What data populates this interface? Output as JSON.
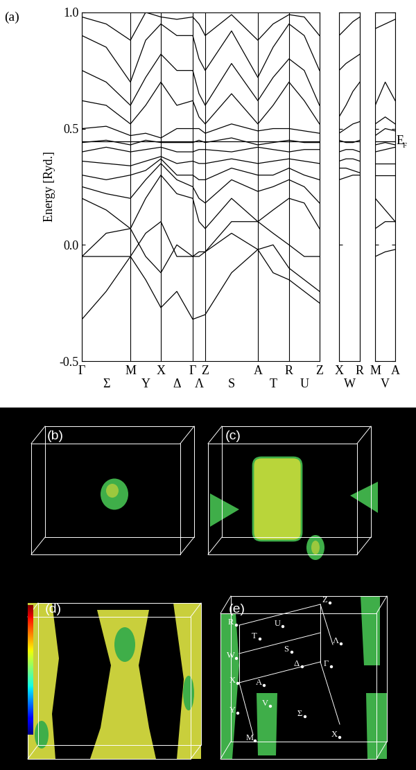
{
  "panel_label": "(a)",
  "fermi_level": {
    "value": 0.445,
    "label": "E",
    "subscript": "F"
  },
  "chart_data": [
    {
      "type": "line",
      "color": "black",
      "grid": true,
      "ylabel": "Energy [Ryd.]",
      "xlim": [
        0,
        343
      ],
      "ylim": [
        -0.5,
        1.0
      ],
      "yticks": [
        -0.5,
        0.0,
        0.5,
        1.0
      ],
      "xticks": [
        {
          "value": 0,
          "label": "Γ"
        },
        {
          "value": 70,
          "label": "M"
        },
        {
          "value": 114,
          "label": "X"
        },
        {
          "value": 160,
          "label": "Γ"
        },
        {
          "value": 178,
          "label": "Z"
        },
        {
          "value": 254,
          "label": "A"
        },
        {
          "value": 299,
          "label": "R"
        },
        {
          "value": 343,
          "label": "Z"
        }
      ],
      "xsublabels": [
        {
          "value": 35,
          "label": "Σ"
        },
        {
          "value": 92,
          "label": "Y"
        },
        {
          "value": 137,
          "label": "Δ"
        },
        {
          "value": 169,
          "label": "Λ"
        },
        {
          "value": 216,
          "label": "S"
        },
        {
          "value": 276,
          "label": "T"
        },
        {
          "value": 321,
          "label": "U"
        }
      ],
      "x": [
        0,
        35,
        70,
        92,
        114,
        137,
        160,
        169,
        178,
        216,
        254,
        276,
        299,
        321,
        343
      ],
      "series": [
        {
          "values": [
            -0.32,
            -0.2,
            -0.05,
            -0.15,
            -0.27,
            -0.2,
            -0.32,
            -0.31,
            -0.3,
            -0.12,
            -0.02,
            -0.12,
            -0.15,
            -0.2,
            -0.25
          ]
        },
        {
          "values": [
            -0.05,
            -0.05,
            -0.05,
            0.05,
            0.1,
            -0.05,
            -0.05,
            -0.05,
            -0.03,
            0.05,
            -0.02,
            0.0,
            -0.1,
            -0.15,
            -0.2
          ]
        },
        {
          "values": [
            -0.05,
            0.05,
            0.07,
            -0.05,
            -0.12,
            0.0,
            -0.05,
            -0.03,
            -0.03,
            0.1,
            0.1,
            0.05,
            0.0,
            -0.05,
            -0.05
          ]
        },
        {
          "values": [
            0.2,
            0.15,
            0.07,
            0.2,
            0.3,
            0.22,
            0.2,
            0.1,
            0.07,
            0.2,
            0.1,
            0.15,
            0.2,
            0.18,
            0.07
          ]
        },
        {
          "values": [
            0.25,
            0.22,
            0.2,
            0.28,
            0.35,
            0.28,
            0.25,
            0.2,
            0.18,
            0.28,
            0.23,
            0.25,
            0.28,
            0.25,
            0.18
          ]
        },
        {
          "values": [
            0.3,
            0.28,
            0.3,
            0.32,
            0.37,
            0.3,
            0.3,
            0.28,
            0.28,
            0.33,
            0.3,
            0.3,
            0.33,
            0.3,
            0.28
          ]
        },
        {
          "values": [
            0.36,
            0.35,
            0.34,
            0.36,
            0.38,
            0.35,
            0.36,
            0.35,
            0.35,
            0.37,
            0.35,
            0.36,
            0.37,
            0.36,
            0.35
          ]
        },
        {
          "values": [
            0.4,
            0.42,
            0.4,
            0.41,
            0.42,
            0.4,
            0.4,
            0.41,
            0.41,
            0.4,
            0.42,
            0.41,
            0.4,
            0.41,
            0.41
          ]
        },
        {
          "values": [
            0.44,
            0.45,
            0.43,
            0.45,
            0.44,
            0.44,
            0.44,
            0.45,
            0.44,
            0.46,
            0.43,
            0.44,
            0.45,
            0.44,
            0.44
          ]
        },
        {
          "values": [
            0.5,
            0.51,
            0.47,
            0.48,
            0.46,
            0.5,
            0.5,
            0.5,
            0.48,
            0.52,
            0.49,
            0.5,
            0.5,
            0.49,
            0.48
          ]
        },
        {
          "values": [
            0.62,
            0.6,
            0.52,
            0.6,
            0.7,
            0.6,
            0.62,
            0.55,
            0.52,
            0.65,
            0.52,
            0.6,
            0.7,
            0.62,
            0.52
          ]
        },
        {
          "values": [
            0.75,
            0.7,
            0.6,
            0.72,
            0.82,
            0.75,
            0.75,
            0.65,
            0.6,
            0.78,
            0.62,
            0.72,
            0.8,
            0.75,
            0.6
          ]
        },
        {
          "values": [
            0.9,
            0.85,
            0.7,
            0.88,
            0.95,
            0.9,
            0.9,
            0.8,
            0.75,
            0.92,
            0.72,
            0.85,
            0.95,
            0.9,
            0.75
          ]
        },
        {
          "values": [
            0.98,
            0.95,
            0.88,
            1.0,
            0.98,
            0.97,
            0.98,
            0.95,
            0.9,
            0.99,
            0.88,
            0.95,
            0.99,
            0.98,
            0.9
          ]
        }
      ]
    },
    {
      "type": "line",
      "color": "black",
      "grid": true,
      "tick_labels": "x",
      "xlim": [
        0,
        30
      ],
      "ylim": [
        -0.5,
        1.0
      ],
      "yticks": [
        -0.5,
        0.0,
        0.5,
        1.0
      ],
      "xticks": [
        {
          "value": 0,
          "label": "X"
        },
        {
          "value": 30,
          "label": "R"
        }
      ],
      "xsublabels": [
        {
          "value": 15,
          "label": "W"
        }
      ],
      "x": [
        0,
        10,
        20,
        30
      ],
      "series": [
        {
          "values": [
            0.28,
            0.29,
            0.3,
            0.3
          ]
        },
        {
          "values": [
            0.33,
            0.33,
            0.32,
            0.31
          ]
        },
        {
          "values": [
            0.36,
            0.37,
            0.37,
            0.36
          ]
        },
        {
          "values": [
            0.4,
            0.41,
            0.41,
            0.4
          ]
        },
        {
          "values": [
            0.45,
            0.44,
            0.44,
            0.45
          ]
        },
        {
          "values": [
            0.48,
            0.5,
            0.52,
            0.53
          ]
        },
        {
          "values": [
            0.55,
            0.6,
            0.66,
            0.7
          ]
        },
        {
          "values": [
            0.75,
            0.78,
            0.8,
            0.82
          ]
        },
        {
          "values": [
            0.9,
            0.93,
            0.96,
            0.98
          ]
        }
      ]
    },
    {
      "type": "line",
      "color": "black",
      "grid": true,
      "tick_labels": "x",
      "xlim": [
        0,
        28
      ],
      "ylim": [
        -0.5,
        1.0
      ],
      "yticks": [
        -0.5,
        0.0,
        0.5,
        1.0
      ],
      "xticks": [
        {
          "value": 0,
          "label": "M"
        },
        {
          "value": 28,
          "label": "A"
        }
      ],
      "xsublabels": [
        {
          "value": 14,
          "label": "V"
        }
      ],
      "x": [
        0,
        14,
        28
      ],
      "series": [
        {
          "values": [
            -0.05,
            -0.03,
            -0.02
          ]
        },
        {
          "values": [
            0.07,
            0.1,
            0.1
          ]
        },
        {
          "values": [
            0.2,
            0.15,
            0.1
          ]
        },
        {
          "values": [
            0.3,
            0.3,
            0.3
          ]
        },
        {
          "values": [
            0.35,
            0.35,
            0.35
          ]
        },
        {
          "values": [
            0.4,
            0.41,
            0.42
          ]
        },
        {
          "values": [
            0.43,
            0.44,
            0.43
          ]
        },
        {
          "values": [
            0.47,
            0.5,
            0.49
          ]
        },
        {
          "values": [
            0.52,
            0.55,
            0.52
          ]
        },
        {
          "values": [
            0.6,
            0.7,
            0.62
          ]
        },
        {
          "values": [
            0.93,
            0.95,
            0.97
          ]
        }
      ]
    }
  ],
  "fermi_surfaces": {
    "panel_labels": [
      "(b)",
      "(c)",
      "(d)",
      "(e)"
    ],
    "bz_points": [
      "R",
      "T",
      "U",
      "Z",
      "S",
      "Λ",
      "W",
      "X",
      "A",
      "Δ",
      "Γ",
      "V",
      "Y",
      "Σ",
      "M",
      "X"
    ]
  }
}
